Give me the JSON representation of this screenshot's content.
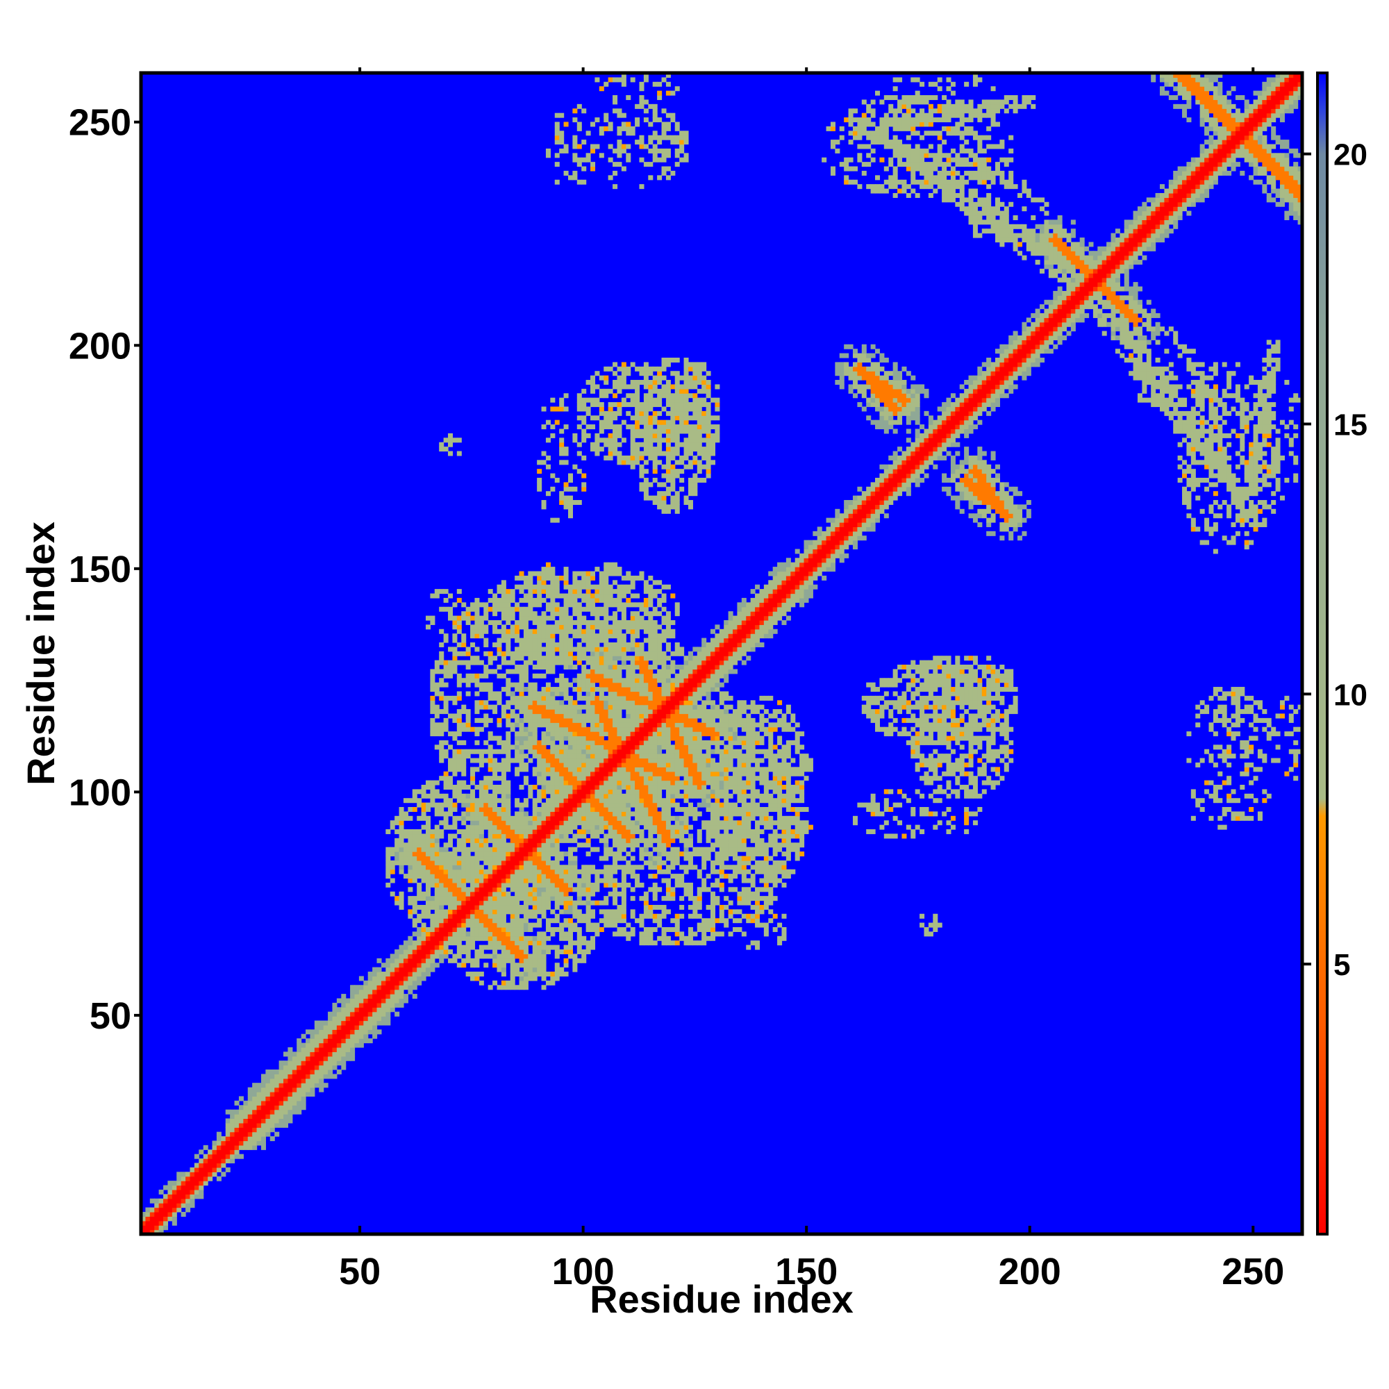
{
  "chart_data": {
    "type": "heatmap",
    "title": "",
    "xlabel": "Residue index",
    "ylabel": "Residue index",
    "xlim": [
      1,
      261
    ],
    "ylim": [
      1,
      261
    ],
    "xticks": [
      50,
      100,
      150,
      200,
      250
    ],
    "yticks": [
      50,
      100,
      150,
      200,
      250
    ],
    "colorbar": {
      "range": [
        0,
        21.5
      ],
      "ticks": [
        5,
        10,
        15,
        20
      ],
      "colors": {
        "low": "#ff0000",
        "mid_low": "#ff8c00",
        "mid": "#9fb58a",
        "high": "#6e89a3",
        "max": "#0000ff"
      }
    },
    "features": {
      "diagonal": "distance 0 along i = j, widening band of 5-12 values",
      "contacts": [
        {
          "i": [
            60,
            90
          ],
          "j": [
            60,
            90
          ],
          "kind": "antiparallel strands"
        },
        {
          "i": [
            95,
            125
          ],
          "j": [
            95,
            125
          ],
          "kind": "antiparallel strands"
        },
        {
          "i": [
            160,
            195
          ],
          "j": [
            160,
            195
          ],
          "kind": "antiparallel strands"
        },
        {
          "i": [
            230,
            261
          ],
          "j": [
            230,
            261
          ],
          "kind": "antiparallel strands"
        },
        {
          "i": [
            105,
            135
          ],
          "j": [
            160,
            195
          ],
          "kind": "tertiary contacts"
        },
        {
          "i": [
            160,
            195
          ],
          "j": [
            230,
            261
          ],
          "kind": "tertiary contacts"
        }
      ]
    }
  }
}
